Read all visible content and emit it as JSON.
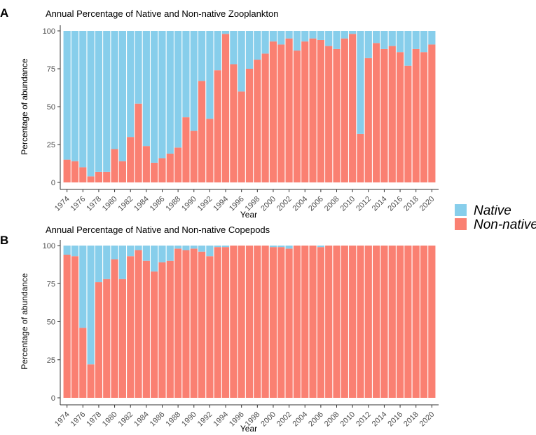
{
  "colors": {
    "native": "#87CEEB",
    "non_native": "#FA8072",
    "axis": "#333333"
  },
  "legend": {
    "items": [
      {
        "label": "Native",
        "color": "#87CEEB"
      },
      {
        "label": "Non-native",
        "color": "#FA8072"
      }
    ]
  },
  "chart_data": [
    {
      "type": "bar",
      "stacked": true,
      "panel_label": "A",
      "title": "Annual Percentage of Native and Non-native Zooplankton",
      "xlabel": "Year",
      "ylabel": "Percentage of abundance",
      "ylim": [
        0,
        100
      ],
      "yticks": [
        0,
        25,
        50,
        75,
        100
      ],
      "categories": [
        1974,
        1975,
        1976,
        1977,
        1978,
        1979,
        1980,
        1981,
        1982,
        1983,
        1984,
        1985,
        1986,
        1987,
        1988,
        1989,
        1990,
        1991,
        1992,
        1993,
        1994,
        1995,
        1996,
        1997,
        1998,
        1999,
        2000,
        2001,
        2002,
        2003,
        2004,
        2005,
        2006,
        2007,
        2008,
        2009,
        2010,
        2011,
        2012,
        2013,
        2014,
        2015,
        2016,
        2017,
        2018,
        2019,
        2020
      ],
      "xtick_labels": [
        "1974",
        "1976",
        "1978",
        "1980",
        "1982",
        "1984",
        "1986",
        "1988",
        "1990",
        "1992",
        "1994",
        "1996",
        "1998",
        "2000",
        "2002",
        "2004",
        "2006",
        "2008",
        "2010",
        "2012",
        "2014",
        "2016",
        "2018",
        "2020"
      ],
      "series": [
        {
          "name": "Non-native",
          "values": [
            15,
            14,
            10,
            4,
            7,
            7,
            22,
            14,
            30,
            52,
            24,
            13,
            16,
            19,
            23,
            43,
            34,
            67,
            42,
            74,
            98,
            78,
            60,
            75,
            81,
            85,
            93,
            91,
            95,
            87,
            93,
            95,
            94,
            90,
            88,
            95,
            98,
            32,
            82,
            92,
            88,
            90,
            86,
            77,
            88,
            86,
            91
          ]
        },
        {
          "name": "Native",
          "values": [
            85,
            86,
            90,
            96,
            93,
            93,
            78,
            86,
            70,
            48,
            76,
            87,
            84,
            81,
            77,
            57,
            66,
            33,
            58,
            26,
            2,
            22,
            40,
            25,
            19,
            15,
            7,
            9,
            5,
            13,
            7,
            5,
            6,
            10,
            12,
            5,
            2,
            68,
            18,
            8,
            12,
            10,
            14,
            23,
            12,
            14,
            9
          ]
        }
      ]
    },
    {
      "type": "bar",
      "stacked": true,
      "panel_label": "B",
      "title": "Annual Percentage of Native and Non-native Copepods",
      "xlabel": "Year",
      "ylabel": "Percentage of abundance",
      "ylim": [
        0,
        100
      ],
      "yticks": [
        0,
        25,
        50,
        75,
        100
      ],
      "categories": [
        1974,
        1975,
        1976,
        1977,
        1978,
        1979,
        1980,
        1981,
        1982,
        1983,
        1984,
        1985,
        1986,
        1987,
        1988,
        1989,
        1990,
        1991,
        1992,
        1993,
        1994,
        1995,
        1996,
        1997,
        1998,
        1999,
        2000,
        2001,
        2002,
        2003,
        2004,
        2005,
        2006,
        2007,
        2008,
        2009,
        2010,
        2011,
        2012,
        2013,
        2014,
        2015,
        2016,
        2017,
        2018,
        2019,
        2020
      ],
      "xtick_labels": [
        "1974",
        "1976",
        "1978",
        "1980",
        "1982",
        "1984",
        "1986",
        "1988",
        "1990",
        "1992",
        "1994",
        "1996",
        "1998",
        "2000",
        "2002",
        "2004",
        "2006",
        "2008",
        "2010",
        "2012",
        "2014",
        "2016",
        "2018",
        "2020"
      ],
      "series": [
        {
          "name": "Non-native",
          "values": [
            94,
            93,
            46,
            22,
            76,
            78,
            91,
            78,
            93,
            97,
            90,
            83,
            89,
            90,
            98,
            97,
            98,
            96,
            93,
            99,
            99,
            100,
            100,
            100,
            100,
            100,
            99,
            99,
            98,
            100,
            100,
            100,
            99,
            100,
            100,
            100,
            100,
            100,
            100,
            100,
            100,
            100,
            100,
            100,
            100,
            100,
            100
          ]
        },
        {
          "name": "Native",
          "values": [
            6,
            7,
            54,
            78,
            24,
            22,
            9,
            22,
            7,
            3,
            10,
            17,
            11,
            10,
            2,
            3,
            2,
            4,
            7,
            1,
            1,
            0,
            0,
            0,
            0,
            0,
            1,
            1,
            2,
            0,
            0,
            0,
            1,
            0,
            0,
            0,
            0,
            0,
            0,
            0,
            0,
            0,
            0,
            0,
            0,
            0,
            0
          ]
        }
      ]
    }
  ]
}
